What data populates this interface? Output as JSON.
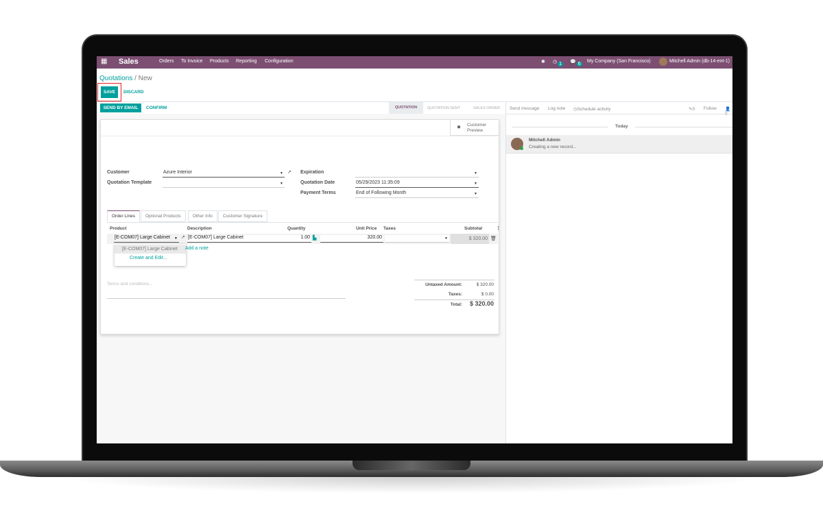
{
  "navbar": {
    "app": "Sales",
    "menu": [
      "Orders",
      "To Invoice",
      "Products",
      "Reporting",
      "Configuration"
    ],
    "activity_count": "1",
    "message_count": "6",
    "company": "My Company (San Francisco)",
    "user": "Mitchell Admin (db-14-ent-1)",
    "color": "#7c4f72"
  },
  "breadcrumb": {
    "parent": "Quotations",
    "current": "New"
  },
  "actions": {
    "save": "SAVE",
    "discard": "DISCARD",
    "send_email": "SEND BY EMAIL",
    "confirm": "CONFIRM"
  },
  "statusbar": [
    "QUOTATION",
    "QUOTATION SENT",
    "SALES ORDER"
  ],
  "statusbar_active": "QUOTATION",
  "customer_preview": "Customer Preview",
  "fields": {
    "customer_label": "Customer",
    "customer": "Azure Interior",
    "template_label": "Quotation Template",
    "template": "",
    "expiration_label": "Expiration",
    "expiration": "",
    "date_label": "Quotation Date",
    "date": "05/29/2023 11:35:09",
    "terms_label": "Payment Terms",
    "terms": "End of Following Month"
  },
  "tabs": [
    "Order Lines",
    "Optional Products",
    "Other Info",
    "Customer Signature"
  ],
  "columns": [
    "Product",
    "Description",
    "Quantity",
    "Unit Price",
    "Taxes",
    "Subtotal"
  ],
  "line": {
    "product": "[E-COM07] Large Cabinet",
    "description": "[E-COM07] Large Cabinet",
    "quantity": "1.00",
    "unit_price": "320.00",
    "taxes": "",
    "subtotal": "$ 320.00"
  },
  "dropdown": [
    "[E-COM07] Large Cabinet",
    "Create and Edit..."
  ],
  "add_note": "Add a note",
  "terms_placeholder": "Terms and conditions...",
  "totals": {
    "untaxed_label": "Untaxed Amount:",
    "untaxed": "$ 320.00",
    "taxes_label": "Taxes:",
    "taxes": "$ 0.00",
    "total_label": "Total:",
    "total": "$ 320.00"
  },
  "chatter": {
    "send_message": "Send message",
    "log_note": "Log note",
    "schedule": "Schedule activity",
    "attachments": "0",
    "follow": "Follow",
    "followers": "0",
    "today": "Today",
    "author": "Mitchell Admin",
    "message": "Creating a new record..."
  }
}
